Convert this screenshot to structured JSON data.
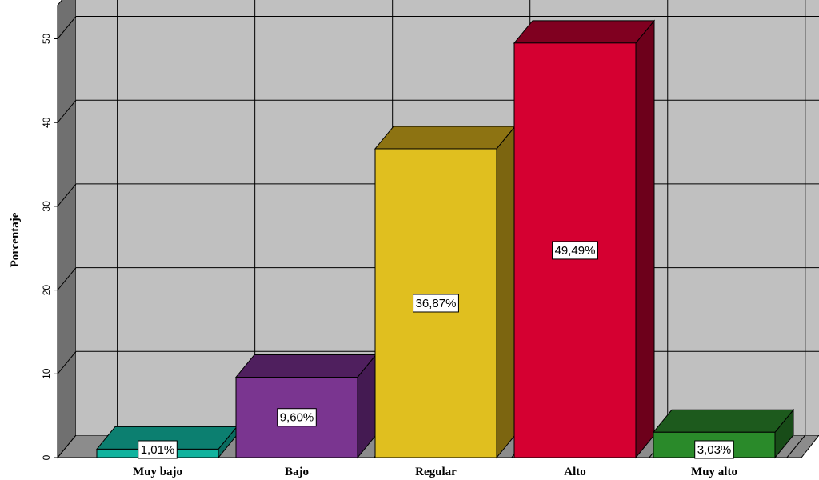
{
  "chart_data": {
    "type": "bar",
    "title": "",
    "xlabel": "",
    "ylabel": "Porcentaje",
    "ylim": [
      0,
      54
    ],
    "yticks": [
      0,
      10,
      20,
      30,
      40,
      50
    ],
    "grid": true,
    "style": "3d",
    "categories": [
      "Muy bajo",
      "Bajo",
      "Regular",
      "Alto",
      "Muy alto"
    ],
    "values": [
      1.01,
      9.6,
      36.87,
      49.49,
      3.03
    ],
    "data_labels": [
      "1,01%",
      "9,60%",
      "36,87%",
      "49,49%",
      "3,03%"
    ],
    "colors": [
      "#10b39e",
      "#7a3590",
      "#e0bf1f",
      "#d50031",
      "#2a8a2a"
    ],
    "top_colors": [
      "#0c7f70",
      "#4f1f5e",
      "#8d7312",
      "#800020",
      "#1d5a1d"
    ],
    "side_colors": [
      "#0a6c60",
      "#441a52",
      "#7c6510",
      "#6d001b",
      "#184c18"
    ],
    "wall_color": "#c0c0c0",
    "floor_color": "#8c8c8c"
  }
}
